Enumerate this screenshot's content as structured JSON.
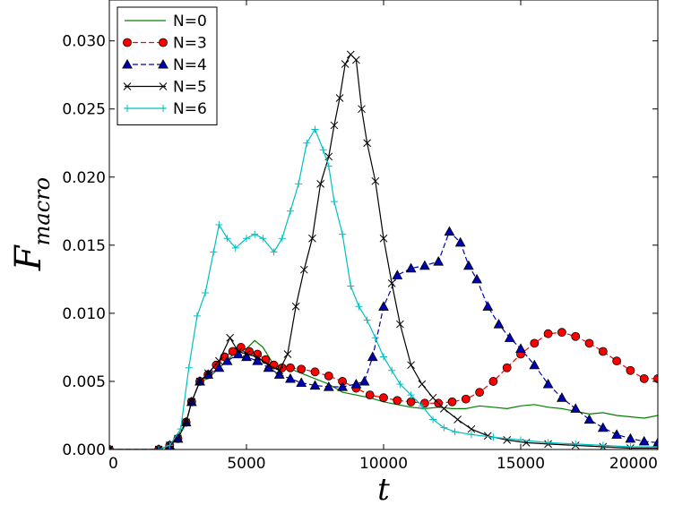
{
  "chart_data": {
    "type": "line",
    "xlabel": "t",
    "ylabel": "F",
    "ylabel_subscript": "macro",
    "xlim": [
      0,
      20000
    ],
    "ylim": [
      0,
      0.033
    ],
    "xticks": [
      0,
      5000,
      10000,
      15000,
      20000
    ],
    "xtick_labels": [
      "0",
      "5000",
      "10000",
      "15000",
      "20000"
    ],
    "yticks": [
      0,
      0.005,
      0.01,
      0.015,
      0.02,
      0.025,
      0.03
    ],
    "ytick_labels": [
      "0.000",
      "0.005",
      "0.010",
      "0.015",
      "0.020",
      "0.025",
      "0.030"
    ],
    "grid": false,
    "legend_position": "top-left",
    "series": [
      {
        "name": "N=0",
        "color": "#008000",
        "marker": "none",
        "dash": "solid",
        "points": [
          [
            0,
            0
          ],
          [
            1800,
            0
          ],
          [
            2200,
            0.0003
          ],
          [
            2500,
            0.001
          ],
          [
            2800,
            0.002
          ],
          [
            3000,
            0.0035
          ],
          [
            3300,
            0.005
          ],
          [
            3600,
            0.0052
          ],
          [
            4000,
            0.006
          ],
          [
            4300,
            0.0065
          ],
          [
            4600,
            0.0072
          ],
          [
            5000,
            0.0074
          ],
          [
            5300,
            0.008
          ],
          [
            5600,
            0.0075
          ],
          [
            6000,
            0.0062
          ],
          [
            6500,
            0.006
          ],
          [
            7000,
            0.0056
          ],
          [
            7500,
            0.0052
          ],
          [
            8000,
            0.0048
          ],
          [
            8500,
            0.0042
          ],
          [
            9000,
            0.004
          ],
          [
            9500,
            0.0038
          ],
          [
            10000,
            0.0035
          ],
          [
            10500,
            0.0033
          ],
          [
            11000,
            0.0031
          ],
          [
            11500,
            0.003
          ],
          [
            12000,
            0.0031
          ],
          [
            12500,
            0.003
          ],
          [
            13000,
            0.003
          ],
          [
            13500,
            0.0032
          ],
          [
            14000,
            0.0031
          ],
          [
            14500,
            0.003
          ],
          [
            15000,
            0.0032
          ],
          [
            15500,
            0.0033
          ],
          [
            16000,
            0.0031
          ],
          [
            16500,
            0.003
          ],
          [
            17000,
            0.0028
          ],
          [
            17500,
            0.0026
          ],
          [
            18000,
            0.0027
          ],
          [
            18500,
            0.0025
          ],
          [
            19000,
            0.0024
          ],
          [
            19500,
            0.0023
          ],
          [
            20000,
            0.0025
          ]
        ]
      },
      {
        "name": "N=3",
        "color": "#ff0000",
        "marker": "circle",
        "dash": "dashed",
        "points": [
          [
            0,
            0
          ],
          [
            1800,
            0
          ],
          [
            2200,
            0.0003
          ],
          [
            2500,
            0.0008
          ],
          [
            2800,
            0.002
          ],
          [
            3000,
            0.0035
          ],
          [
            3300,
            0.005
          ],
          [
            3600,
            0.0055
          ],
          [
            3900,
            0.0062
          ],
          [
            4200,
            0.0068
          ],
          [
            4500,
            0.0072
          ],
          [
            4800,
            0.0075
          ],
          [
            5100,
            0.0072
          ],
          [
            5400,
            0.007
          ],
          [
            5700,
            0.0066
          ],
          [
            6000,
            0.0062
          ],
          [
            6300,
            0.006
          ],
          [
            6600,
            0.006
          ],
          [
            7000,
            0.0059
          ],
          [
            7500,
            0.0057
          ],
          [
            8000,
            0.0054
          ],
          [
            8500,
            0.005
          ],
          [
            9000,
            0.0045
          ],
          [
            9500,
            0.004
          ],
          [
            10000,
            0.0038
          ],
          [
            10500,
            0.0036
          ],
          [
            11000,
            0.0035
          ],
          [
            11500,
            0.0034
          ],
          [
            12000,
            0.0034
          ],
          [
            12500,
            0.0035
          ],
          [
            13000,
            0.0037
          ],
          [
            13500,
            0.0042
          ],
          [
            14000,
            0.005
          ],
          [
            14500,
            0.006
          ],
          [
            15000,
            0.007
          ],
          [
            15500,
            0.0078
          ],
          [
            16000,
            0.0085
          ],
          [
            16500,
            0.0086
          ],
          [
            17000,
            0.0083
          ],
          [
            17500,
            0.0078
          ],
          [
            18000,
            0.0072
          ],
          [
            18500,
            0.0065
          ],
          [
            19000,
            0.0058
          ],
          [
            19500,
            0.0052
          ],
          [
            20000,
            0.0052
          ]
        ]
      },
      {
        "name": "N=4",
        "color": "#0000b0",
        "marker": "triangle",
        "dash": "dashed",
        "points": [
          [
            0,
            0
          ],
          [
            1800,
            0
          ],
          [
            2200,
            0.0003
          ],
          [
            2500,
            0.0008
          ],
          [
            2800,
            0.002
          ],
          [
            3000,
            0.0035
          ],
          [
            3300,
            0.005
          ],
          [
            3600,
            0.0055
          ],
          [
            4000,
            0.006
          ],
          [
            4300,
            0.0065
          ],
          [
            4700,
            0.007
          ],
          [
            5000,
            0.0068
          ],
          [
            5400,
            0.0065
          ],
          [
            5800,
            0.006
          ],
          [
            6200,
            0.0055
          ],
          [
            6600,
            0.0052
          ],
          [
            7000,
            0.0049
          ],
          [
            7500,
            0.0047
          ],
          [
            8000,
            0.0046
          ],
          [
            8500,
            0.0046
          ],
          [
            9000,
            0.0048
          ],
          [
            9300,
            0.005
          ],
          [
            9600,
            0.0068
          ],
          [
            10000,
            0.0105
          ],
          [
            10500,
            0.0128
          ],
          [
            11000,
            0.0133
          ],
          [
            11500,
            0.0135
          ],
          [
            12000,
            0.0138
          ],
          [
            12400,
            0.016
          ],
          [
            12800,
            0.0152
          ],
          [
            13100,
            0.0135
          ],
          [
            13400,
            0.0125
          ],
          [
            13800,
            0.0105
          ],
          [
            14200,
            0.0092
          ],
          [
            14600,
            0.0082
          ],
          [
            15000,
            0.0074
          ],
          [
            15500,
            0.0062
          ],
          [
            16000,
            0.0048
          ],
          [
            16500,
            0.0038
          ],
          [
            17000,
            0.003
          ],
          [
            17500,
            0.0022
          ],
          [
            18000,
            0.0016
          ],
          [
            18500,
            0.0011
          ],
          [
            19000,
            0.0008
          ],
          [
            19500,
            0.0006
          ],
          [
            20000,
            0.0005
          ]
        ]
      },
      {
        "name": "N=5",
        "color": "#000000",
        "marker": "cross",
        "dash": "solid",
        "points": [
          [
            0,
            0
          ],
          [
            1800,
            0
          ],
          [
            2200,
            0.0003
          ],
          [
            2500,
            0.0008
          ],
          [
            2800,
            0.002
          ],
          [
            3000,
            0.0035
          ],
          [
            3300,
            0.005
          ],
          [
            3600,
            0.0056
          ],
          [
            4000,
            0.0065
          ],
          [
            4400,
            0.0082
          ],
          [
            4700,
            0.0072
          ],
          [
            5000,
            0.007
          ],
          [
            5400,
            0.0068
          ],
          [
            5800,
            0.0062
          ],
          [
            6200,
            0.0058
          ],
          [
            6500,
            0.007
          ],
          [
            6800,
            0.0105
          ],
          [
            7100,
            0.0132
          ],
          [
            7400,
            0.0155
          ],
          [
            7700,
            0.0195
          ],
          [
            8000,
            0.0215
          ],
          [
            8200,
            0.0238
          ],
          [
            8400,
            0.0258
          ],
          [
            8600,
            0.0283
          ],
          [
            8800,
            0.029
          ],
          [
            9000,
            0.0286
          ],
          [
            9200,
            0.025
          ],
          [
            9400,
            0.0225
          ],
          [
            9700,
            0.0197
          ],
          [
            10000,
            0.0155
          ],
          [
            10300,
            0.0122
          ],
          [
            10600,
            0.0092
          ],
          [
            11000,
            0.0062
          ],
          [
            11400,
            0.0048
          ],
          [
            11800,
            0.0038
          ],
          [
            12200,
            0.003
          ],
          [
            12700,
            0.0022
          ],
          [
            13200,
            0.0015
          ],
          [
            13800,
            0.001
          ],
          [
            14500,
            0.0007
          ],
          [
            15200,
            0.0005
          ],
          [
            16000,
            0.0004
          ],
          [
            17000,
            0.0003
          ],
          [
            18000,
            0.0002
          ],
          [
            19000,
            0.0001
          ],
          [
            20000,
            0.0001
          ]
        ]
      },
      {
        "name": "N=6",
        "color": "#00bfbf",
        "marker": "plus",
        "dash": "solid",
        "points": [
          [
            0,
            0
          ],
          [
            1800,
            0
          ],
          [
            2200,
            0.0003
          ],
          [
            2600,
            0.0015
          ],
          [
            2900,
            0.006
          ],
          [
            3200,
            0.0098
          ],
          [
            3500,
            0.0115
          ],
          [
            3800,
            0.0145
          ],
          [
            4000,
            0.0165
          ],
          [
            4300,
            0.0155
          ],
          [
            4600,
            0.0148
          ],
          [
            5000,
            0.0155
          ],
          [
            5300,
            0.0158
          ],
          [
            5600,
            0.0155
          ],
          [
            6000,
            0.0145
          ],
          [
            6300,
            0.0155
          ],
          [
            6600,
            0.0175
          ],
          [
            6900,
            0.0195
          ],
          [
            7200,
            0.0225
          ],
          [
            7500,
            0.0235
          ],
          [
            7800,
            0.022
          ],
          [
            8000,
            0.0208
          ],
          [
            8200,
            0.0182
          ],
          [
            8500,
            0.0158
          ],
          [
            8800,
            0.012
          ],
          [
            9100,
            0.0105
          ],
          [
            9400,
            0.0095
          ],
          [
            9700,
            0.0082
          ],
          [
            10000,
            0.0068
          ],
          [
            10300,
            0.0058
          ],
          [
            10600,
            0.0048
          ],
          [
            11000,
            0.004
          ],
          [
            11400,
            0.0032
          ],
          [
            11800,
            0.0022
          ],
          [
            12200,
            0.0016
          ],
          [
            12600,
            0.0013
          ],
          [
            13200,
            0.0011
          ],
          [
            14000,
            0.0009
          ],
          [
            15000,
            0.0007
          ],
          [
            16000,
            0.0005
          ],
          [
            17000,
            0.0004
          ],
          [
            18000,
            0.0003
          ],
          [
            19000,
            0.0002
          ],
          [
            20000,
            0.0002
          ]
        ]
      }
    ]
  }
}
